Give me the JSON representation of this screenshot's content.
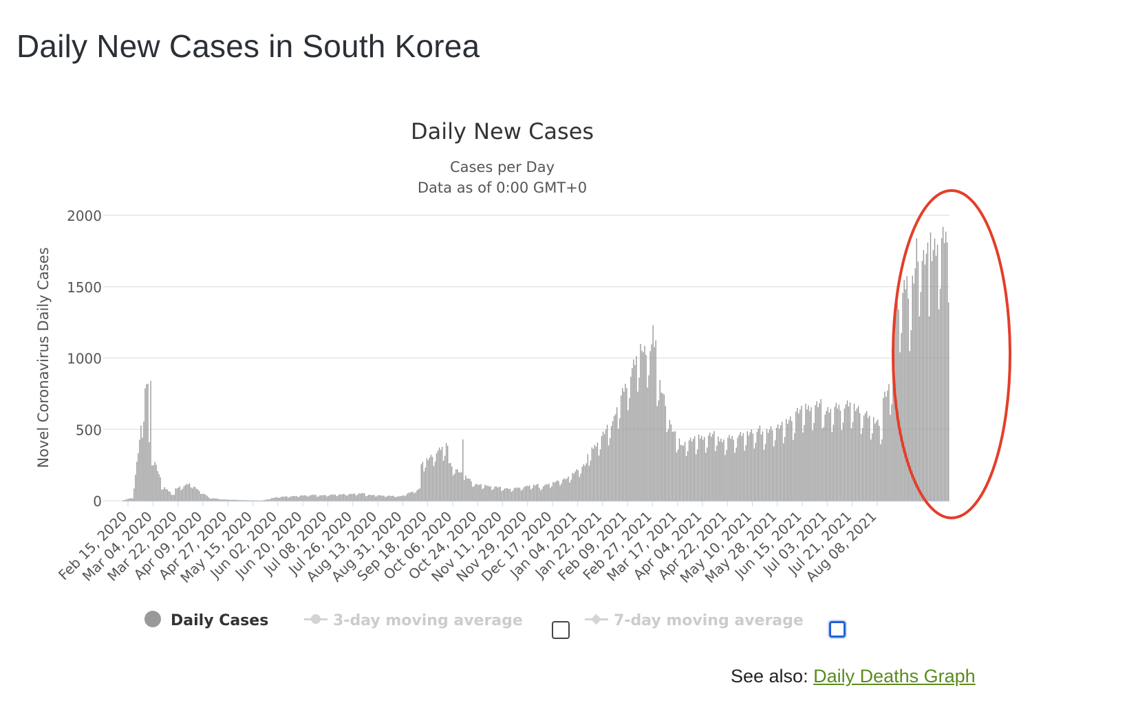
{
  "page": {
    "title": "Daily New Cases in South Korea"
  },
  "chart_data": {
    "type": "bar",
    "title": "Daily New Cases",
    "subtitle_line1": "Cases per Day",
    "subtitle_line2": "Data as of 0:00 GMT+0",
    "ylabel": "Novel Coronavirus Daily Cases",
    "ylim": [
      0,
      2000
    ],
    "yticks": [
      "0",
      "500",
      "1000",
      "1500",
      "2000"
    ],
    "xtick_labels": [
      "Feb 15, 2020",
      "Mar 04, 2020",
      "Mar 22, 2020",
      "Apr 09, 2020",
      "Apr 27, 2020",
      "May 15, 2020",
      "Jun 02, 2020",
      "Jun 20, 2020",
      "Jul 08, 2020",
      "Jul 26, 2020",
      "Aug 13, 2020",
      "Aug 31, 2020",
      "Sep 18, 2020",
      "Oct 06, 2020",
      "Oct 24, 2020",
      "Nov 11, 2020",
      "Nov 29, 2020",
      "Dec 17, 2020",
      "Jan 04, 2021",
      "Jan 22, 2021",
      "Feb 09, 2021",
      "Feb 27, 2021",
      "Mar 17, 2021",
      "Apr 04, 2021",
      "Apr 22, 2021",
      "May 10, 2021",
      "May 28, 2021",
      "Jun 15, 2021",
      "Jul 03, 2021",
      "Jul 21, 2021",
      "Aug 08, 2021"
    ],
    "grid": true,
    "bar_color": "#999999",
    "series": [
      {
        "name": "Daily Cases",
        "segments": [
          [
            0,
            8,
            3,
            20
          ],
          [
            8,
            18,
            100,
            800
          ],
          [
            18,
            28,
            400,
            150
          ],
          [
            28,
            38,
            100,
            40
          ],
          [
            38,
            50,
            80,
            120
          ],
          [
            50,
            62,
            100,
            30
          ],
          [
            62,
            74,
            20,
            8
          ],
          [
            74,
            100,
            8,
            0
          ],
          [
            100,
            112,
            0,
            25
          ],
          [
            112,
            140,
            25,
            40
          ],
          [
            140,
            175,
            35,
            50
          ],
          [
            175,
            200,
            40,
            30
          ],
          [
            200,
            215,
            30,
            80
          ],
          [
            215,
            235,
            250,
            380
          ],
          [
            235,
            255,
            250,
            110
          ],
          [
            255,
            280,
            110,
            80
          ],
          [
            280,
            300,
            80,
            110
          ],
          [
            300,
            320,
            90,
            150
          ],
          [
            320,
            335,
            150,
            250
          ],
          [
            335,
            355,
            300,
            550
          ],
          [
            355,
            375,
            600,
            1050
          ],
          [
            375,
            385,
            1000,
            1050
          ],
          [
            385,
            395,
            850,
            550
          ],
          [
            395,
            405,
            500,
            350
          ],
          [
            405,
            430,
            400,
            450
          ],
          [
            430,
            460,
            400,
            480
          ],
          [
            460,
            485,
            450,
            550
          ],
          [
            485,
            505,
            600,
            650
          ],
          [
            505,
            525,
            600,
            650
          ],
          [
            525,
            540,
            650,
            550
          ],
          [
            540,
            548,
            550,
            500
          ],
          [
            548,
            556,
            700,
            800
          ],
          [
            556,
            566,
            1200,
            1500
          ],
          [
            566,
            576,
            1300,
            1700
          ],
          [
            576,
            586,
            1600,
            1700
          ],
          [
            586,
            596,
            1700,
            1780
          ]
        ],
        "highlights": [
          [
            18,
            820
          ],
          [
            20,
            840
          ],
          [
            245,
            430
          ],
          [
            382,
            1230
          ],
          [
            572,
            1840
          ],
          [
            582,
            1880
          ],
          [
            594,
            1810
          ]
        ]
      },
      {
        "name": "3-day moving average"
      },
      {
        "name": "7-day moving average"
      }
    ]
  },
  "annotation": {
    "shape": "ellipse",
    "color": "#e33e2b"
  },
  "see_also": {
    "prefix": "See also:",
    "link_text": "Daily Deaths Graph"
  }
}
